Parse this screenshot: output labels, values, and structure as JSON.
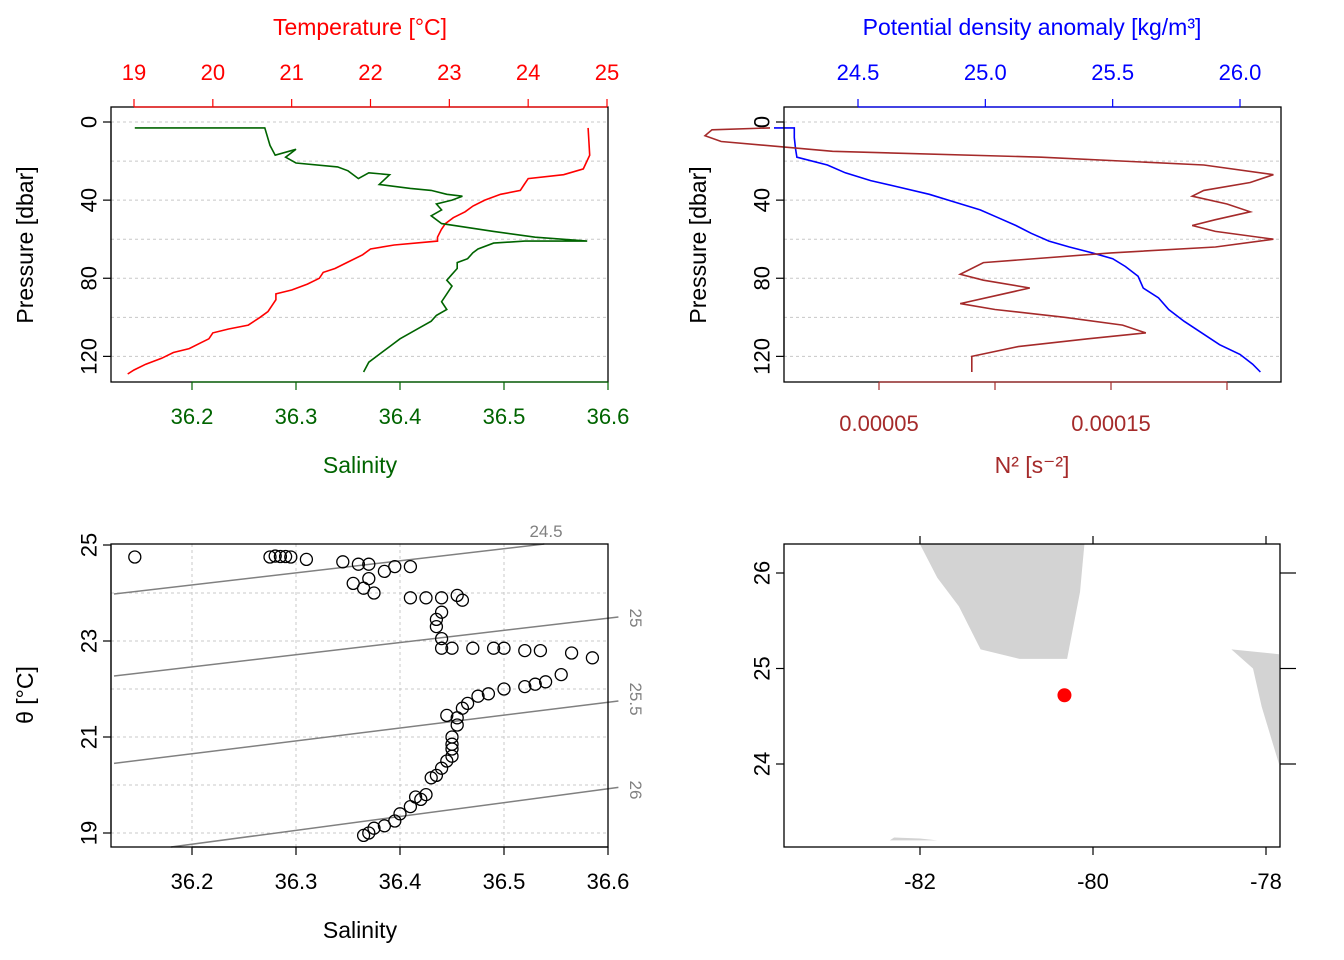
{
  "colors": {
    "temperature": "#ff0000",
    "salinity": "#006400",
    "density": "#0000ff",
    "n2": "#a52a2a",
    "isopycnal": "#808080",
    "land": "#d3d3d3",
    "station": "#ff0000"
  },
  "chart_data": [
    {
      "type": "line",
      "panel": "top-left",
      "x_top_label": "Temperature [°C]",
      "x_bottom_label": "Salinity",
      "ylabel": "Pressure [dbar]",
      "y_ticks": [
        "0",
        "40",
        "80",
        "120"
      ],
      "x_top_ticks": [
        "19",
        "20",
        "21",
        "22",
        "23",
        "24",
        "25"
      ],
      "x_bottom_ticks": [
        "36.2",
        "36.3",
        "36.4",
        "36.5",
        "36.6"
      ],
      "ylim": [
        0,
        128
      ],
      "y_reversed": true,
      "x_top_range": [
        18.7,
        25.2
      ],
      "x_bottom_range": [
        36.125,
        36.61
      ],
      "grid": true,
      "series": [
        {
          "axis": "top",
          "values": [
            [
              24.76,
              3
            ],
            [
              24.77,
              10
            ],
            [
              24.78,
              17
            ],
            [
              24.7,
              24
            ],
            [
              24.45,
              27
            ],
            [
              24.0,
              29
            ],
            [
              23.95,
              32
            ],
            [
              23.9,
              35
            ],
            [
              23.65,
              37
            ],
            [
              23.45,
              40
            ],
            [
              23.3,
              43
            ],
            [
              23.2,
              46
            ],
            [
              23.05,
              49
            ],
            [
              22.95,
              52
            ],
            [
              22.9,
              55
            ],
            [
              22.85,
              59
            ],
            [
              22.85,
              61
            ],
            [
              22.3,
              63
            ],
            [
              22.0,
              65
            ],
            [
              21.9,
              68
            ],
            [
              21.7,
              72
            ],
            [
              21.55,
              75
            ],
            [
              21.4,
              77
            ],
            [
              21.35,
              80
            ],
            [
              21.2,
              83
            ],
            [
              21.0,
              86
            ],
            [
              20.8,
              88
            ],
            [
              20.8,
              91
            ],
            [
              20.75,
              94
            ],
            [
              20.7,
              97
            ],
            [
              20.6,
              100
            ],
            [
              20.45,
              104
            ],
            [
              20.2,
              106
            ],
            [
              20.0,
              108
            ],
            [
              19.95,
              111
            ],
            [
              19.85,
              113
            ],
            [
              19.7,
              116
            ],
            [
              19.5,
              118
            ],
            [
              19.35,
              121
            ],
            [
              19.15,
              124
            ],
            [
              19.0,
              127
            ],
            [
              18.92,
              129
            ]
          ]
        },
        {
          "axis": "bottom",
          "values": [
            [
              36.145,
              3
            ],
            [
              36.27,
              3
            ],
            [
              36.275,
              12
            ],
            [
              36.28,
              17
            ],
            [
              36.3,
              14
            ],
            [
              36.29,
              18
            ],
            [
              36.3,
              21
            ],
            [
              36.34,
              23
            ],
            [
              36.35,
              25
            ],
            [
              36.36,
              29
            ],
            [
              36.37,
              26
            ],
            [
              36.39,
              27
            ],
            [
              36.38,
              32
            ],
            [
              36.41,
              34
            ],
            [
              36.43,
              35
            ],
            [
              36.445,
              37
            ],
            [
              36.46,
              38
            ],
            [
              36.45,
              40
            ],
            [
              36.435,
              42
            ],
            [
              36.44,
              45
            ],
            [
              36.43,
              48
            ],
            [
              36.44,
              52
            ],
            [
              36.49,
              56
            ],
            [
              36.53,
              59
            ],
            [
              36.58,
              61
            ],
            [
              36.52,
              61
            ],
            [
              36.49,
              62
            ],
            [
              36.475,
              65
            ],
            [
              36.47,
              67
            ],
            [
              36.465,
              70
            ],
            [
              36.455,
              72
            ],
            [
              36.455,
              75
            ],
            [
              36.45,
              78
            ],
            [
              36.445,
              81
            ],
            [
              36.45,
              84
            ],
            [
              36.445,
              88
            ],
            [
              36.44,
              92
            ],
            [
              36.445,
              96
            ],
            [
              36.435,
              99
            ],
            [
              36.43,
              102
            ],
            [
              36.42,
              105
            ],
            [
              36.41,
              108
            ],
            [
              36.4,
              111
            ],
            [
              36.39,
              115
            ],
            [
              36.38,
              119
            ],
            [
              36.37,
              123
            ],
            [
              36.365,
              128
            ]
          ]
        }
      ]
    },
    {
      "type": "line",
      "panel": "top-right",
      "x_top_label": "Potential density anomaly [kg/m³]",
      "x_bottom_label": "N² [s⁻²]",
      "ylabel": "Pressure [dbar]",
      "y_ticks": [
        "0",
        "40",
        "80",
        "120"
      ],
      "x_top_ticks": [
        "24.5",
        "25.0",
        "25.5",
        "26.0"
      ],
      "x_bottom_ticks": [
        "0.00005",
        "0.00015"
      ],
      "ylim": [
        0,
        128
      ],
      "y_reversed": true,
      "x_top_range": [
        24.1,
        26.17
      ],
      "x_bottom_range": [
        -2.86e-05,
        0.000229
      ],
      "grid": true,
      "series": [
        {
          "axis": "top",
          "values": [
            [
              24.17,
              3
            ],
            [
              24.25,
              3
            ],
            [
              24.25,
              8
            ],
            [
              24.255,
              14
            ],
            [
              24.26,
              18
            ],
            [
              24.38,
              22
            ],
            [
              24.45,
              26
            ],
            [
              24.55,
              30
            ],
            [
              24.65,
              33
            ],
            [
              24.78,
              37
            ],
            [
              24.88,
              41
            ],
            [
              24.98,
              45
            ],
            [
              25.05,
              49
            ],
            [
              25.12,
              53
            ],
            [
              25.18,
              57
            ],
            [
              25.25,
              61
            ],
            [
              25.33,
              64
            ],
            [
              25.42,
              67
            ],
            [
              25.5,
              70
            ],
            [
              25.55,
              74
            ],
            [
              25.6,
              79
            ],
            [
              25.62,
              85
            ],
            [
              25.68,
              90
            ],
            [
              25.72,
              96
            ],
            [
              25.78,
              102
            ],
            [
              25.85,
              108
            ],
            [
              25.92,
              114
            ],
            [
              26.0,
              119
            ],
            [
              26.05,
              124
            ],
            [
              26.08,
              128
            ]
          ]
        },
        {
          "axis": "bottom",
          "values": [
            [
              3e-06,
              3
            ],
            [
              -2.2e-05,
              4
            ],
            [
              -2.5e-05,
              7
            ],
            [
              -1.8e-05,
              10
            ],
            [
              3e-05,
              15
            ],
            [
              0.00012,
              18
            ],
            [
              0.00019,
              22
            ],
            [
              0.00022,
              27
            ],
            [
              0.00021,
              31
            ],
            [
              0.00019,
              35
            ],
            [
              0.000185,
              38
            ],
            [
              0.0002,
              42
            ],
            [
              0.00021,
              46
            ],
            [
              0.000195,
              50
            ],
            [
              0.000185,
              53
            ],
            [
              0.000195,
              56
            ],
            [
              0.00022,
              60
            ],
            [
              0.000195,
              64
            ],
            [
              0.00015,
              67
            ],
            [
              9.5e-05,
              72
            ],
            [
              8.5e-05,
              78
            ],
            [
              9.5e-05,
              81
            ],
            [
              0.000115,
              85
            ],
            [
              0.0001,
              89
            ],
            [
              8.5e-05,
              93
            ],
            [
              0.0001,
              96
            ],
            [
              0.00013,
              100
            ],
            [
              0.000155,
              104
            ],
            [
              0.000165,
              108
            ],
            [
              0.00014,
              111
            ],
            [
              0.00011,
              115
            ],
            [
              9e-05,
              120
            ],
            [
              9e-05,
              124
            ],
            [
              9e-05,
              128
            ]
          ]
        }
      ]
    },
    {
      "type": "scatter",
      "panel": "bottom-left",
      "xlabel": "Salinity",
      "ylabel": "θ [°C]",
      "x_ticks": [
        "36.2",
        "36.3",
        "36.4",
        "36.5",
        "36.6"
      ],
      "y_ticks": [
        "19",
        "21",
        "23",
        "25"
      ],
      "xlim": [
        36.125,
        36.61
      ],
      "ylim": [
        18.7,
        25.05
      ],
      "grid": true,
      "isopycnals": [
        {
          "label": "24.5",
          "values": [
            [
              36.125,
              23.98
            ],
            [
              36.61,
              25.2
            ]
          ]
        },
        {
          "label": "25",
          "values": [
            [
              36.125,
              22.27
            ],
            [
              36.61,
              23.5
            ]
          ]
        },
        {
          "label": "25.5",
          "values": [
            [
              36.125,
              20.45
            ],
            [
              36.61,
              21.75
            ]
          ]
        },
        {
          "label": "26",
          "values": [
            [
              36.125,
              18.55
            ],
            [
              36.61,
              19.95
            ]
          ]
        }
      ],
      "points": [
        [
          36.145,
          24.75
        ],
        [
          36.275,
          24.75
        ],
        [
          36.28,
          24.77
        ],
        [
          36.285,
          24.76
        ],
        [
          36.29,
          24.76
        ],
        [
          36.295,
          24.75
        ],
        [
          36.31,
          24.7
        ],
        [
          36.345,
          24.65
        ],
        [
          36.36,
          24.6
        ],
        [
          36.37,
          24.6
        ],
        [
          36.385,
          24.45
        ],
        [
          36.37,
          24.3
        ],
        [
          36.355,
          24.2
        ],
        [
          36.365,
          24.1
        ],
        [
          36.375,
          24.0
        ],
        [
          36.395,
          24.55
        ],
        [
          36.41,
          24.55
        ],
        [
          36.41,
          23.9
        ],
        [
          36.425,
          23.9
        ],
        [
          36.44,
          23.9
        ],
        [
          36.455,
          23.95
        ],
        [
          36.46,
          23.85
        ],
        [
          36.44,
          23.6
        ],
        [
          36.435,
          23.45
        ],
        [
          36.435,
          23.3
        ],
        [
          36.44,
          23.05
        ],
        [
          36.44,
          22.85
        ],
        [
          36.45,
          22.85
        ],
        [
          36.47,
          22.85
        ],
        [
          36.49,
          22.85
        ],
        [
          36.5,
          22.85
        ],
        [
          36.52,
          22.8
        ],
        [
          36.535,
          22.8
        ],
        [
          36.565,
          22.75
        ],
        [
          36.585,
          22.65
        ],
        [
          36.555,
          22.3
        ],
        [
          36.54,
          22.15
        ],
        [
          36.53,
          22.1
        ],
        [
          36.52,
          22.05
        ],
        [
          36.5,
          22.0
        ],
        [
          36.485,
          21.9
        ],
        [
          36.475,
          21.85
        ],
        [
          36.465,
          21.7
        ],
        [
          36.46,
          21.6
        ],
        [
          36.455,
          21.4
        ],
        [
          36.445,
          21.45
        ],
        [
          36.455,
          21.25
        ],
        [
          36.45,
          21.0
        ],
        [
          36.45,
          20.85
        ],
        [
          36.45,
          20.75
        ],
        [
          36.45,
          20.6
        ],
        [
          36.445,
          20.5
        ],
        [
          36.44,
          20.35
        ],
        [
          36.435,
          20.2
        ],
        [
          36.43,
          20.15
        ],
        [
          36.425,
          19.8
        ],
        [
          36.42,
          19.7
        ],
        [
          36.415,
          19.75
        ],
        [
          36.41,
          19.55
        ],
        [
          36.4,
          19.4
        ],
        [
          36.395,
          19.25
        ],
        [
          36.385,
          19.15
        ],
        [
          36.375,
          19.1
        ],
        [
          36.37,
          19.0
        ],
        [
          36.365,
          18.95
        ]
      ]
    },
    {
      "type": "map",
      "panel": "bottom-right",
      "x_ticks": [
        "-82",
        "-80",
        "-78"
      ],
      "y_ticks": [
        "24",
        "25",
        "26"
      ],
      "xlim": [
        -83.55,
        -77.85
      ],
      "ylim": [
        23.2,
        26.3
      ],
      "station": {
        "lon": -80.33,
        "lat": 24.72
      },
      "land": [
        [
          [
            -82.0,
            26.3
          ],
          [
            -81.8,
            25.95
          ],
          [
            -81.55,
            25.65
          ],
          [
            -81.3,
            25.2
          ],
          [
            -80.85,
            25.1
          ],
          [
            -80.3,
            25.1
          ],
          [
            -80.15,
            25.8
          ],
          [
            -80.1,
            26.3
          ]
        ],
        [
          [
            -78.4,
            25.2
          ],
          [
            -78.15,
            25.0
          ],
          [
            -78.05,
            24.6
          ],
          [
            -77.85,
            24.0
          ],
          [
            -77.85,
            25.15
          ]
        ],
        [
          [
            -82.35,
            23.2
          ],
          [
            -82.3,
            23.23
          ],
          [
            -82.0,
            23.22
          ],
          [
            -81.8,
            23.2
          ]
        ]
      ]
    }
  ]
}
